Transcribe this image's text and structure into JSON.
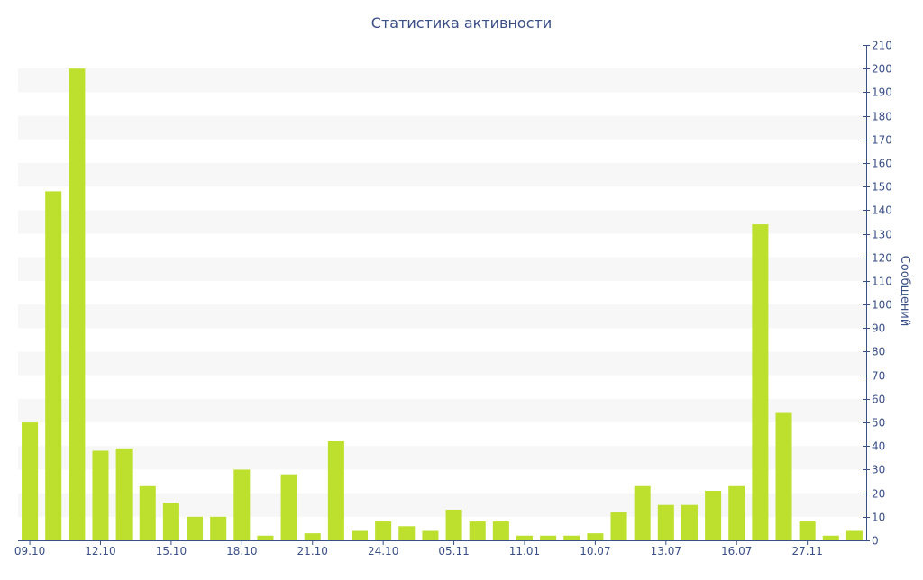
{
  "chart_data": {
    "type": "bar",
    "title": "Статистика активности",
    "xlabel": "",
    "ylabel": "Сообщений",
    "ylim": [
      0,
      210
    ],
    "y_ticks": [
      0,
      10,
      20,
      30,
      40,
      50,
      60,
      70,
      80,
      90,
      100,
      110,
      120,
      130,
      140,
      150,
      160,
      170,
      180,
      190,
      200,
      210
    ],
    "x_tick_labels": [
      {
        "index": 0,
        "label": "09.10"
      },
      {
        "index": 3,
        "label": "12.10"
      },
      {
        "index": 6,
        "label": "15.10"
      },
      {
        "index": 9,
        "label": "18.10"
      },
      {
        "index": 12,
        "label": "21.10"
      },
      {
        "index": 15,
        "label": "24.10"
      },
      {
        "index": 18,
        "label": "05.11"
      },
      {
        "index": 21,
        "label": "11.01"
      },
      {
        "index": 24,
        "label": "10.07"
      },
      {
        "index": 27,
        "label": "13.07"
      },
      {
        "index": 30,
        "label": "16.07"
      },
      {
        "index": 33,
        "label": "27.11"
      }
    ],
    "values": [
      50,
      148,
      200,
      38,
      39,
      23,
      16,
      10,
      10,
      30,
      2,
      28,
      3,
      42,
      4,
      8,
      6,
      4,
      13,
      8,
      8,
      2,
      2,
      2,
      3,
      12,
      23,
      15,
      15,
      21,
      23,
      134,
      54,
      8,
      2,
      4
    ],
    "bar_color": "#bde02f",
    "band_color": "#f7f7f7",
    "axis_color": "#3b4f87",
    "grid": "alternating-bands",
    "y_axis_position": "right"
  }
}
